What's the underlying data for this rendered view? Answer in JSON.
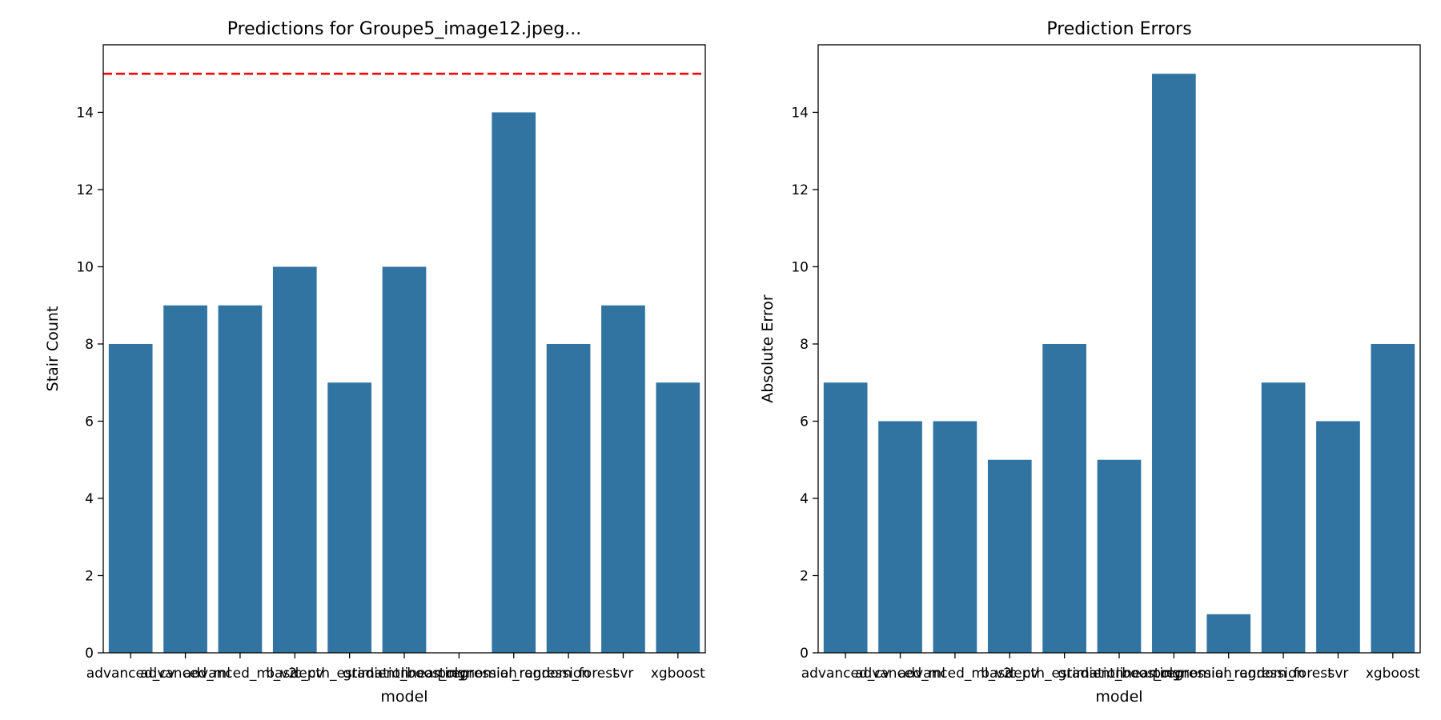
{
  "chart_data": [
    {
      "type": "bar",
      "title": "Predictions for Groupe5_image12.jpeg...",
      "xlabel": "model",
      "ylabel": "Stair Count",
      "categories": [
        "advanced_cv",
        "advanced_ml",
        "advanced_ml_v2",
        "basic_cv",
        "depth_estimation",
        "gradient_boosting",
        "linear_regression",
        "polynomial_regression",
        "random_forest",
        "svr",
        "xgboost"
      ],
      "values": [
        8,
        9,
        9,
        10,
        7,
        10,
        0,
        14,
        8,
        9,
        7
      ],
      "yticks": [
        0,
        2,
        4,
        6,
        8,
        10,
        12,
        14
      ],
      "ylim": [
        0,
        15.75
      ],
      "reference_line": {
        "y": 15,
        "color": "#ff0000",
        "style": "dashed"
      },
      "bar_color": "#3274a1",
      "grid": false
    },
    {
      "type": "bar",
      "title": "Prediction Errors",
      "xlabel": "model",
      "ylabel": "Absolute Error",
      "categories": [
        "advanced_cv",
        "advanced_ml",
        "advanced_ml_v2",
        "basic_cv",
        "depth_estimation",
        "gradient_boosting",
        "linear_regression",
        "polynomial_regression",
        "random_forest",
        "svr",
        "xgboost"
      ],
      "values": [
        7,
        6,
        6,
        5,
        8,
        5,
        15,
        1,
        7,
        6,
        8
      ],
      "yticks": [
        0,
        2,
        4,
        6,
        8,
        10,
        12,
        14
      ],
      "ylim": [
        0,
        15.75
      ],
      "bar_color": "#3274a1",
      "grid": false
    }
  ]
}
